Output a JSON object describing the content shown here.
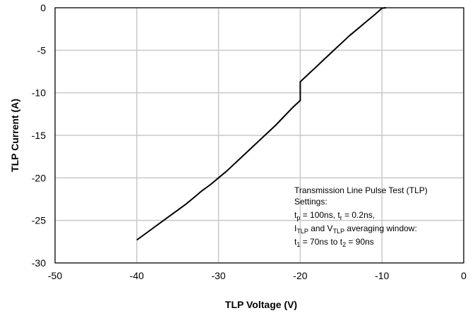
{
  "chart_data": {
    "type": "line",
    "title": "",
    "xlabel": "TLP Voltage (V)",
    "ylabel": "TLP Current (A)",
    "xlim": [
      -50,
      0
    ],
    "ylim": [
      -30,
      0
    ],
    "xticks": [
      -50,
      -40,
      -30,
      -20,
      -10,
      0
    ],
    "yticks": [
      0,
      -5,
      -10,
      -15,
      -20,
      -25,
      -30
    ],
    "grid": true,
    "line_color": "#000000",
    "grid_color": "#c8c8c8",
    "series": [
      {
        "x": [
          -40,
          -39,
          -38,
          -37,
          -36,
          -35,
          -34,
          -33,
          -32,
          -31,
          -30,
          -29,
          -28,
          -27,
          -26,
          -25,
          -24,
          -23,
          -22,
          -21,
          -20,
          -20,
          -19,
          -18,
          -17,
          -16,
          -15,
          -14,
          -13,
          -12,
          -11,
          -10.4,
          -10,
          -9.5
        ],
        "y": [
          -27.3,
          -26.6,
          -25.9,
          -25.2,
          -24.5,
          -23.8,
          -23.1,
          -22.3,
          -21.5,
          -20.8,
          -20.0,
          -19.2,
          -18.3,
          -17.4,
          -16.5,
          -15.6,
          -14.7,
          -13.8,
          -12.8,
          -11.8,
          -10.9,
          -8.7,
          -7.8,
          -6.9,
          -6.0,
          -5.1,
          -4.2,
          -3.3,
          -2.5,
          -1.7,
          -0.9,
          -0.4,
          -0.05,
          0
        ]
      }
    ],
    "annotation": {
      "line1": "Transmission Line Pulse Test (TLP)",
      "line2": "Settings:",
      "line3_a": "t",
      "line3_a_sub": "p",
      "line3_b": " = 100ns, t",
      "line3_b_sub": "r",
      "line3_c": " = 0.2ns,",
      "line4_a": "I",
      "line4_a_sub": "TLP",
      "line4_b": " and V",
      "line4_b_sub": "TLP",
      "line4_c": " averaging window:",
      "line5_a": " t",
      "line5_a_sub": "1",
      "line5_b": " = 70ns to t",
      "line5_b_sub": "2",
      "line5_c": " = 90ns"
    }
  }
}
